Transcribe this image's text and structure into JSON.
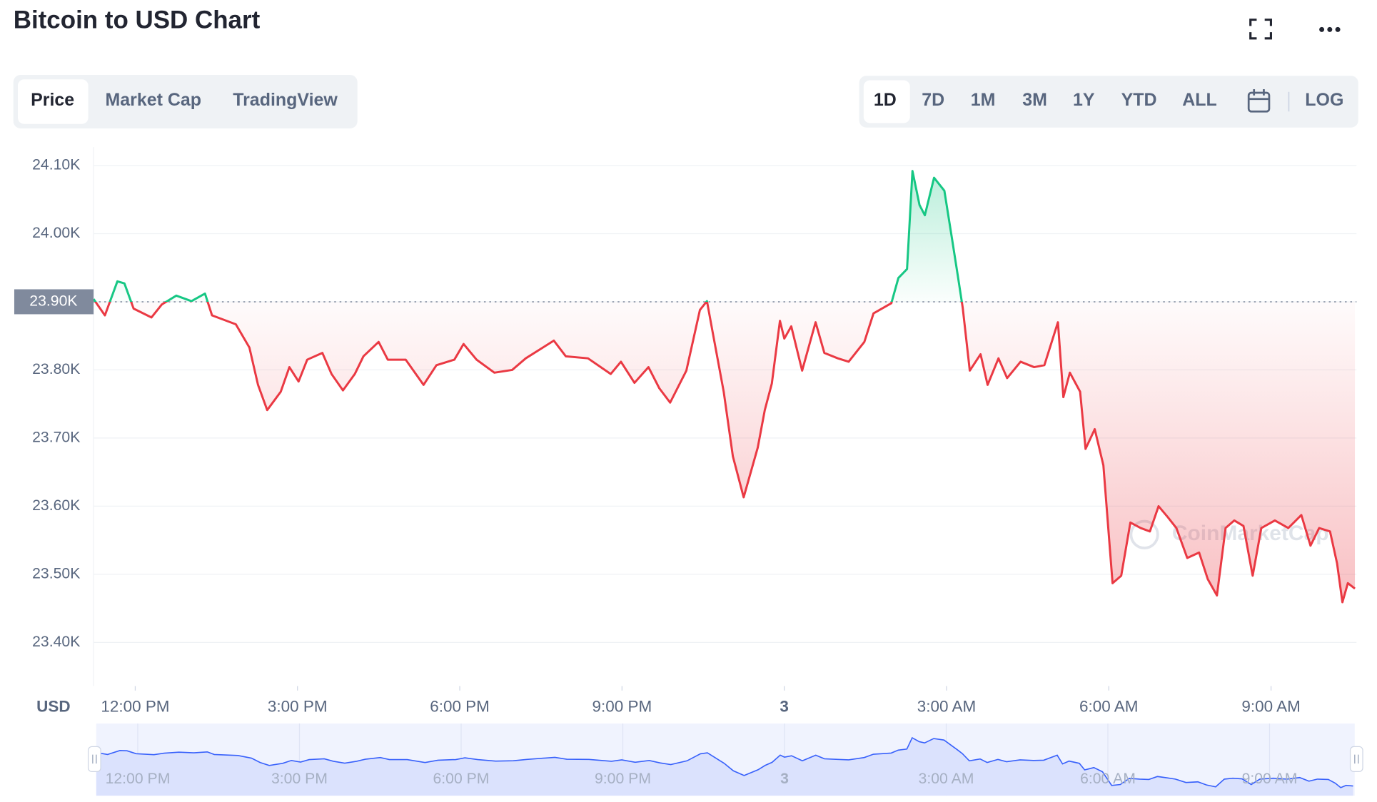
{
  "header": {
    "title": "Bitcoin to USD Chart",
    "tabs": [
      "Price",
      "Market Cap",
      "TradingView"
    ],
    "ranges": [
      "1D",
      "7D",
      "1M",
      "3M",
      "1Y",
      "YTD",
      "ALL"
    ],
    "log": "LOG"
  },
  "chart_data": {
    "type": "line",
    "x": [
      -0.77,
      -0.56,
      -0.33,
      -0.2,
      -0.03,
      0.3,
      0.49,
      0.76,
      1.04,
      1.29,
      1.42,
      1.86,
      2.11,
      2.27,
      2.44,
      2.69,
      2.85,
      3.02,
      3.18,
      3.46,
      3.63,
      3.84,
      4.06,
      4.22,
      4.5,
      4.67,
      5.0,
      5.33,
      5.57,
      5.9,
      6.07,
      6.31,
      6.64,
      6.97,
      7.22,
      7.74,
      7.96,
      8.37,
      8.79,
      8.98,
      9.23,
      9.49,
      9.69,
      9.89,
      10.19,
      10.44,
      10.57,
      10.68,
      10.88,
      11.05,
      11.25,
      11.51,
      11.64,
      11.77,
      11.92,
      12.0,
      12.13,
      12.33,
      12.58,
      12.74,
      12.99,
      13.19,
      13.48,
      13.65,
      13.98,
      14.11,
      14.27,
      14.37,
      14.5,
      14.6,
      14.77,
      14.96,
      15.1,
      15.21,
      15.3,
      15.43,
      15.63,
      15.76,
      15.96,
      16.12,
      16.37,
      16.62,
      16.81,
      17.06,
      17.16,
      17.28,
      17.47,
      17.57,
      17.74,
      17.9,
      18.07,
      18.23,
      18.4,
      18.59,
      18.76,
      18.92,
      19.09,
      19.25,
      19.45,
      19.67,
      19.83,
      20.0,
      20.16,
      20.32,
      20.49,
      20.66,
      20.82,
      21.07,
      21.32,
      21.56,
      21.73,
      21.89,
      22.09,
      22.22,
      22.32,
      22.42,
      22.55
    ],
    "values": [
      23904,
      23880,
      23930,
      23927,
      23890,
      23877,
      23896,
      23909,
      23901,
      23912,
      23880,
      23867,
      23833,
      23778,
      23741,
      23768,
      23804,
      23783,
      23815,
      23825,
      23794,
      23770,
      23794,
      23820,
      23841,
      23815,
      23815,
      23778,
      23807,
      23815,
      23838,
      23815,
      23796,
      23800,
      23817,
      23843,
      23820,
      23817,
      23794,
      23812,
      23781,
      23804,
      23773,
      23752,
      23799,
      23888,
      23901,
      23854,
      23768,
      23673,
      23613,
      23686,
      23741,
      23780,
      23872,
      23846,
      23864,
      23799,
      23870,
      23825,
      23817,
      23812,
      23841,
      23883,
      23898,
      23935,
      23948,
      24092,
      24042,
      24027,
      24082,
      24063,
      23993,
      23938,
      23891,
      23799,
      23823,
      23778,
      23817,
      23788,
      23812,
      23804,
      23807,
      23870,
      23760,
      23796,
      23768,
      23684,
      23713,
      23660,
      23487,
      23498,
      23576,
      23568,
      23563,
      23600,
      23584,
      23568,
      23524,
      23532,
      23493,
      23469,
      23568,
      23579,
      23571,
      23498,
      23568,
      23579,
      23568,
      23587,
      23542,
      23568,
      23563,
      23516,
      23459,
      23487,
      23479
    ],
    "xlim": [
      -0.77,
      22.58
    ],
    "ylim": [
      23336,
      24127
    ],
    "xticks": [
      {
        "value": 0,
        "label": "12:00 PM"
      },
      {
        "value": 3,
        "label": "3:00 PM"
      },
      {
        "value": 6,
        "label": "6:00 PM"
      },
      {
        "value": 9,
        "label": "9:00 PM"
      },
      {
        "value": 12,
        "label": "3"
      },
      {
        "value": 15,
        "label": "3:00 AM"
      },
      {
        "value": 18,
        "label": "6:00 AM"
      },
      {
        "value": 21,
        "label": "9:00 AM"
      }
    ],
    "yticks": [
      {
        "value": 23400,
        "label": "23.40K"
      },
      {
        "value": 23500,
        "label": "23.50K"
      },
      {
        "value": 23600,
        "label": "23.60K"
      },
      {
        "value": 23700,
        "label": "23.70K"
      },
      {
        "value": 23800,
        "label": "23.80K"
      },
      {
        "value": 23900,
        "label": "23.90K"
      },
      {
        "value": 24000,
        "label": "24.00K"
      },
      {
        "value": 24100,
        "label": "24.10K"
      }
    ],
    "baseline": {
      "value": 23900,
      "label": "23.90K"
    },
    "ylabel": "USD",
    "watermark": "CoinMarketCap",
    "colors": {
      "up": "#16c784",
      "down": "#ea3943",
      "navigator": "#3861fb"
    },
    "grid": true
  }
}
